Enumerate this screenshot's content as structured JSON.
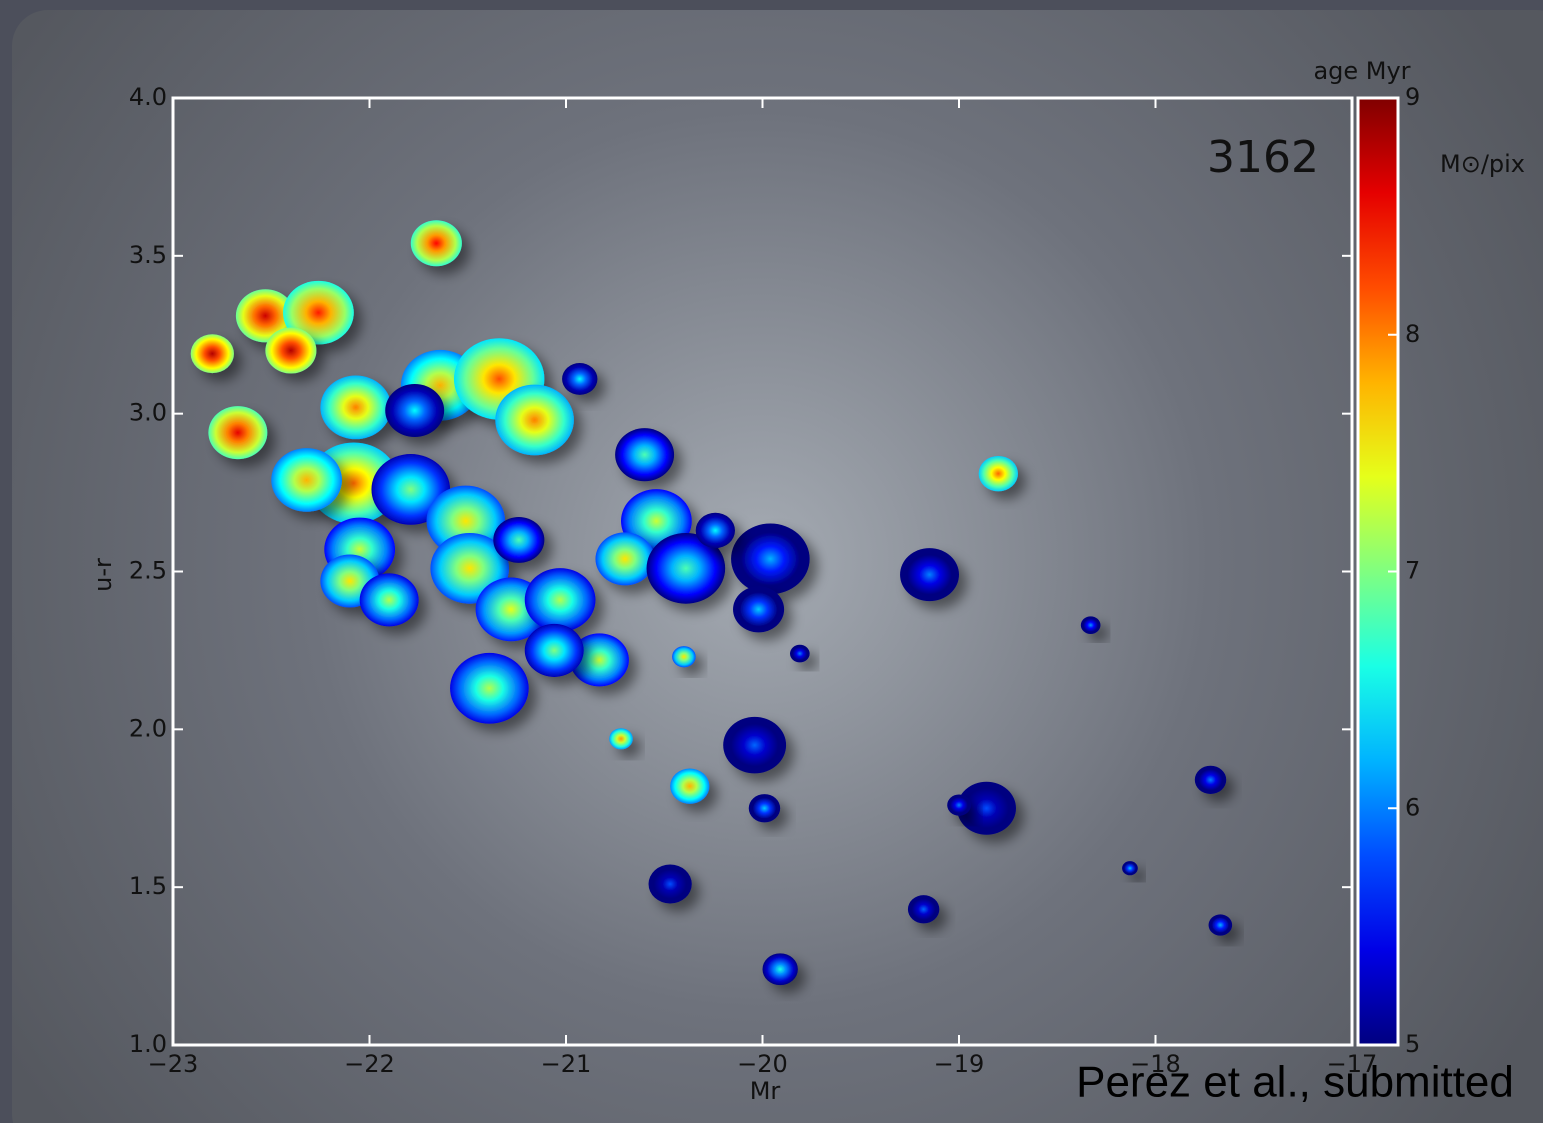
{
  "chart_data": {
    "type": "scatter",
    "xlabel": "Mr",
    "ylabel": "u-r",
    "annotation": "3162",
    "source": "Perez et al., submitted",
    "xlim": [
      -23,
      -17
    ],
    "ylim": [
      1,
      4
    ],
    "xticks": [
      {
        "value": -23,
        "label": "−23"
      },
      {
        "value": -22,
        "label": "−22"
      },
      {
        "value": -21,
        "label": "−21"
      },
      {
        "value": -20,
        "label": "−20"
      },
      {
        "value": -19,
        "label": "−19"
      },
      {
        "value": -18,
        "label": "−18"
      },
      {
        "value": -17,
        "label": "−17"
      }
    ],
    "yticks": [
      {
        "value": 1,
        "label": "1.0"
      },
      1.5,
      {
        "value": 2,
        "label": "2.0"
      },
      2.5,
      {
        "value": 3,
        "label": "3.0"
      },
      3.5,
      {
        "value": 4,
        "label": "4.0"
      }
    ],
    "colorbar": {
      "label": "age Myr",
      "unit": "M⊙/pix",
      "lim": [
        5,
        9
      ],
      "ticks": [
        5,
        6,
        7,
        8,
        9
      ]
    },
    "series": [
      {
        "x": [
          -22.8,
          -22.67,
          -22.53,
          -22.26,
          -22.4,
          -21.66,
          -22.07,
          -21.64,
          -21.34,
          -21.16,
          -21.77,
          -22.08,
          -22.32,
          -21.79,
          -21.51,
          -22.05,
          -22.1,
          -21.9,
          -21.49,
          -21.28,
          -21.03,
          -21.24,
          -20.83,
          -21.39,
          -21.06,
          -20.6,
          -20.54,
          -20.7,
          -20.39,
          -19.96,
          -20.93,
          -19.15,
          -18.8,
          -20.04,
          -20.37,
          -20.72,
          -20.47,
          -19.91,
          -19.99,
          -20.4,
          -19.18,
          -18.86,
          -19.0,
          -17.72,
          -17.67,
          -18.33,
          -18.13,
          -19.81,
          -20.02,
          -20.24
        ],
        "values": [
          3.19,
          2.94,
          3.31,
          3.32,
          3.2,
          3.54,
          3.02,
          3.09,
          3.11,
          2.98,
          3.01,
          2.78,
          2.79,
          2.76,
          2.66,
          2.57,
          2.47,
          2.41,
          2.51,
          2.38,
          2.41,
          2.6,
          2.22,
          2.13,
          2.25,
          2.87,
          2.66,
          2.54,
          2.51,
          2.54,
          3.11,
          2.49,
          2.81,
          1.95,
          1.82,
          1.97,
          1.51,
          1.24,
          1.75,
          2.23,
          1.43,
          1.75,
          1.76,
          1.84,
          1.38,
          2.33,
          1.56,
          2.24,
          2.38,
          2.63
        ],
        "sizes": [
          0.11,
          0.15,
          0.15,
          0.18,
          0.13,
          0.13,
          0.18,
          0.2,
          0.23,
          0.2,
          0.15,
          0.23,
          0.18,
          0.2,
          0.2,
          0.18,
          0.15,
          0.15,
          0.2,
          0.18,
          0.18,
          0.13,
          0.15,
          0.2,
          0.15,
          0.15,
          0.18,
          0.15,
          0.2,
          0.2,
          0.09,
          0.15,
          0.1,
          0.16,
          0.1,
          0.06,
          0.11,
          0.09,
          0.08,
          0.06,
          0.08,
          0.15,
          0.06,
          0.08,
          0.06,
          0.05,
          0.04,
          0.05,
          0.13,
          0.1
        ],
        "ages": [
          8.8,
          8.6,
          8.7,
          8.4,
          8.8,
          8.5,
          8.0,
          7.8,
          8.2,
          8.0,
          6.5,
          8.1,
          7.8,
          7.0,
          7.6,
          7.3,
          7.6,
          7.2,
          7.6,
          7.4,
          7.2,
          6.8,
          7.3,
          7.2,
          7.0,
          6.8,
          7.3,
          7.6,
          6.8,
          6.2,
          6.5,
          6.0,
          8.1,
          5.9,
          7.8,
          7.9,
          5.8,
          6.6,
          6.3,
          7.6,
          5.9,
          5.8,
          6.0,
          6.0,
          6.2,
          6.1,
          6.3,
          6.0,
          6.3,
          6.5
        ]
      }
    ]
  }
}
